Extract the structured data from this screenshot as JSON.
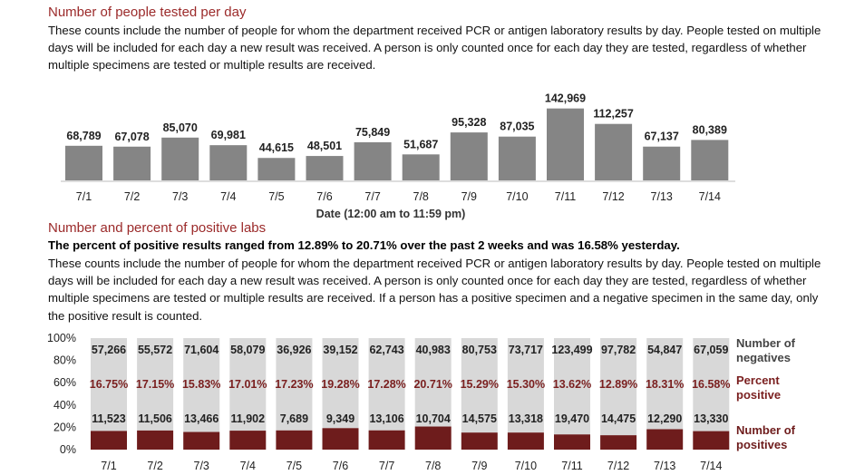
{
  "section1": {
    "heading": "Number of people tested per day",
    "paragraph": "These counts include the number of people for whom the department received PCR or antigen laboratory results by day. People tested on multiple days will be included for each day a new result was received. A person is only counted once for each day they are tested, regardless of whether multiple specimens are tested or multiple results are received."
  },
  "section2": {
    "heading": "Number and percent of positive labs",
    "summary": "The percent of positive results ranged from 12.89% to 20.71% over the past 2 weeks and was 16.58% yesterday.",
    "paragraph": "These counts include the number of people for whom the department received PCR or antigen laboratory results by day. People tested on multiple days will be included for each day a new result was received. A person is only counted once for each day they are tested, regardless of whether multiple specimens are tested or multiple results are received. If a person has a positive specimen and a negative specimen in the same day, only the positive result is counted."
  },
  "chart_data": [
    {
      "type": "bar",
      "title": "",
      "xlabel": "Date (12:00 am to 11:59 pm)",
      "ylabel": "",
      "categories": [
        "7/1",
        "7/2",
        "7/3",
        "7/4",
        "7/5",
        "7/6",
        "7/7",
        "7/8",
        "7/9",
        "7/10",
        "7/11",
        "7/12",
        "7/13",
        "7/14"
      ],
      "values": [
        68789,
        67078,
        85070,
        69981,
        44615,
        48501,
        75849,
        51687,
        95328,
        87035,
        142969,
        112257,
        67137,
        80389
      ],
      "value_labels": [
        "68,789",
        "67,078",
        "85,070",
        "69,981",
        "44,615",
        "48,501",
        "75,849",
        "51,687",
        "95,328",
        "87,035",
        "142,969",
        "112,257",
        "67,137",
        "80,389"
      ],
      "grid": false,
      "colors": {
        "bar": "#858585"
      }
    },
    {
      "type": "bar",
      "stacked": "percent",
      "title": "",
      "xlabel": "",
      "ylabel": "",
      "categories": [
        "7/1",
        "7/2",
        "7/3",
        "7/4",
        "7/5",
        "7/6",
        "7/7",
        "7/8",
        "7/9",
        "7/10",
        "7/11",
        "7/12",
        "7/13",
        "7/14"
      ],
      "y_ticks": [
        "100%",
        "80%",
        "60%",
        "40%",
        "20%",
        "0%"
      ],
      "ylim": [
        0,
        100
      ],
      "series": [
        {
          "name": "Number of positives",
          "values": [
            11523,
            11506,
            13466,
            11902,
            7689,
            9349,
            13106,
            10704,
            14575,
            13318,
            19470,
            14475,
            12290,
            13330
          ],
          "labels": [
            "11,523",
            "11,506",
            "13,466",
            "11,902",
            "7,689",
            "9,349",
            "13,106",
            "10,704",
            "14,575",
            "13,318",
            "19,470",
            "14,475",
            "12,290",
            "13,330"
          ]
        },
        {
          "name": "Number of negatives",
          "values": [
            57266,
            55572,
            71604,
            58079,
            36926,
            39152,
            62743,
            40983,
            80753,
            73717,
            123499,
            97782,
            54847,
            67059
          ],
          "labels": [
            "57,266",
            "55,572",
            "71,604",
            "58,079",
            "36,926",
            "39,152",
            "62,743",
            "40,983",
            "80,753",
            "73,717",
            "123,499",
            "97,782",
            "54,847",
            "67,059"
          ]
        }
      ],
      "percent_positive": {
        "name": "Percent positive",
        "values": [
          16.75,
          17.15,
          15.83,
          17.01,
          17.23,
          19.28,
          17.28,
          20.71,
          15.29,
          15.3,
          13.62,
          12.89,
          18.31,
          16.58
        ],
        "labels": [
          "16.75%",
          "17.15%",
          "15.83%",
          "17.01%",
          "17.23%",
          "19.28%",
          "17.28%",
          "20.71%",
          "15.29%",
          "15.30%",
          "13.62%",
          "12.89%",
          "18.31%",
          "16.58%"
        ]
      },
      "legend_position": "right",
      "colors": {
        "positives": "#6e1c1c",
        "negatives": "#d8d8d8",
        "percent_text": "#7a1f1f",
        "legend_text": "#444444"
      }
    }
  ]
}
